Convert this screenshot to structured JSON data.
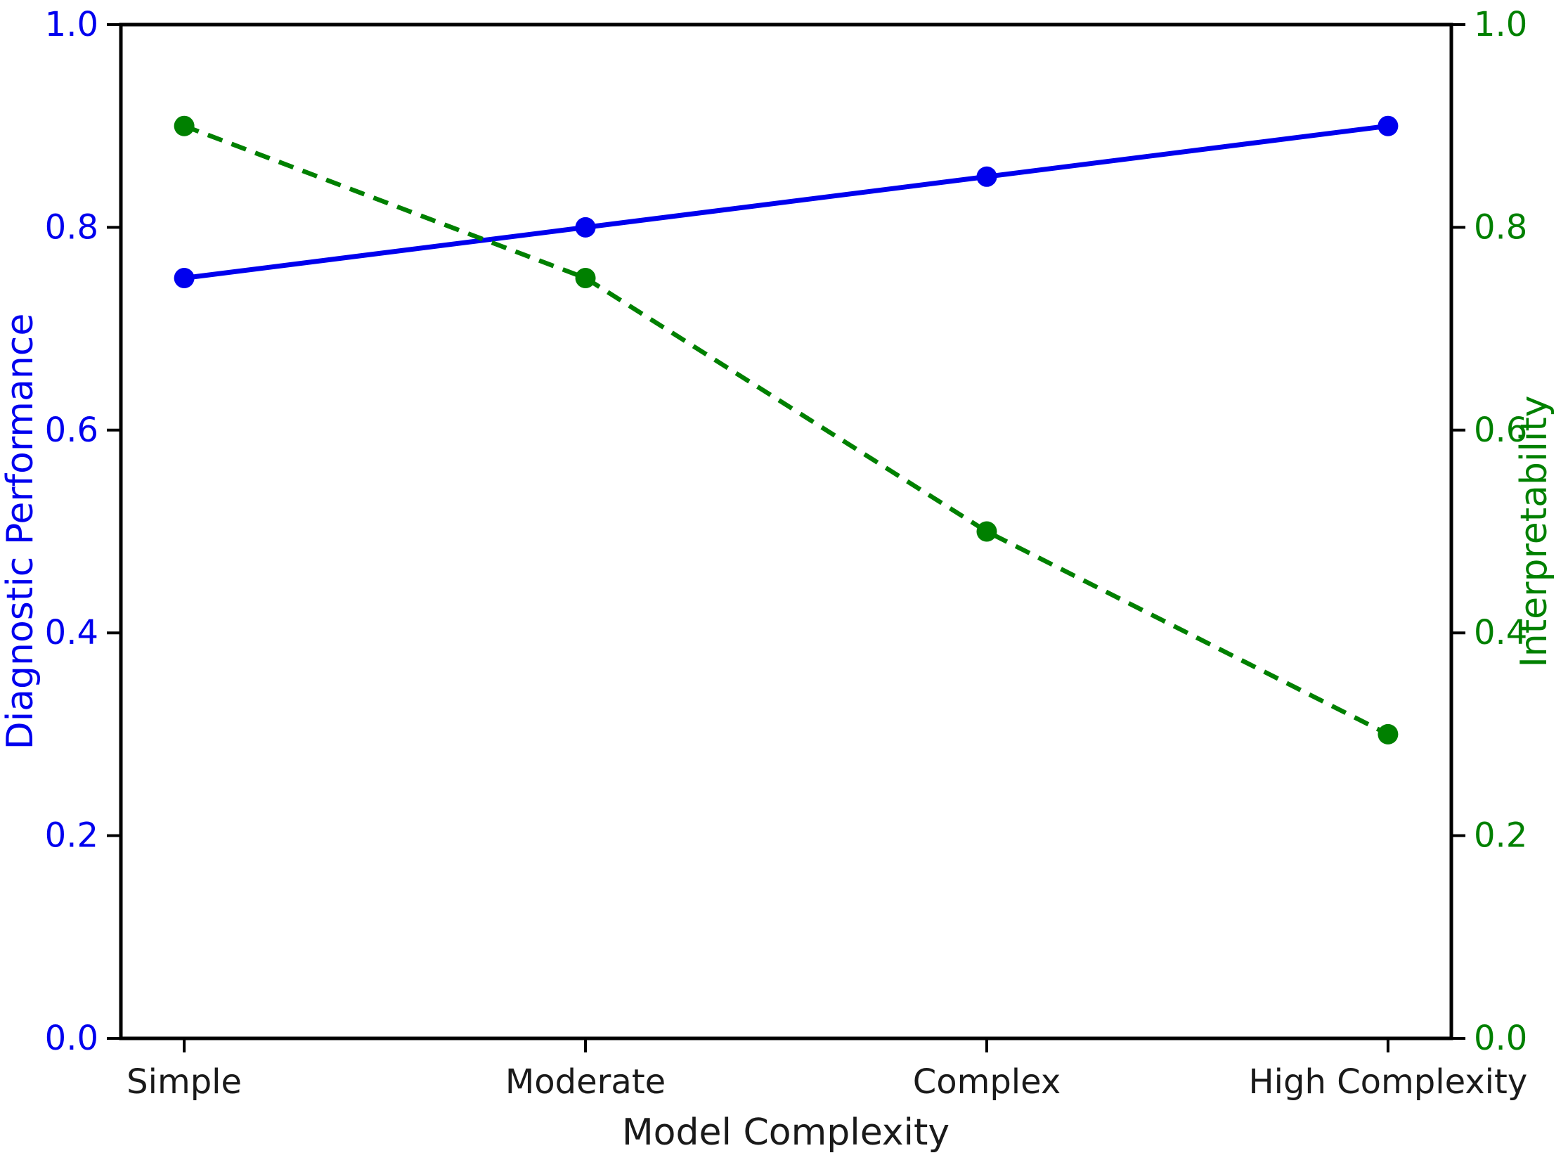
{
  "chart_data": {
    "type": "line",
    "title": "",
    "categories": [
      "Simple",
      "Moderate",
      "Complex",
      "High Complexity"
    ],
    "xlabel": "Model Complexity",
    "ylabel_left": "Diagnostic Performance",
    "ylabel_right": "Interpretability",
    "ylim_left": [
      0.0,
      1.0
    ],
    "ylim_right": [
      0.0,
      1.0
    ],
    "yticks": [
      0.0,
      0.2,
      0.4,
      0.6,
      0.8,
      1.0
    ],
    "ytick_labels_left": [
      "0.0",
      "0.2",
      "0.4",
      "0.6",
      "0.8",
      "1.0"
    ],
    "ytick_labels_right": [
      "0.0",
      "0.2",
      "0.4",
      "0.6",
      "0.8",
      "1.0"
    ],
    "grid": false,
    "legend": "none",
    "series": [
      {
        "name": "Diagnostic Performance",
        "axis": "left",
        "values": [
          0.75,
          0.8,
          0.85,
          0.9
        ],
        "color": "#0000ee",
        "line_style": "solid",
        "marker": "circle"
      },
      {
        "name": "Interpretability",
        "axis": "right",
        "values": [
          0.9,
          0.75,
          0.5,
          0.3
        ],
        "color": "#008000",
        "line_style": "dashed",
        "marker": "circle"
      }
    ],
    "colors": {
      "left_axis_text": "#0000ee",
      "right_axis_text": "#008000",
      "x_axis_text": "#1a1a1a",
      "spine": "#000000",
      "background": "#ffffff"
    }
  }
}
